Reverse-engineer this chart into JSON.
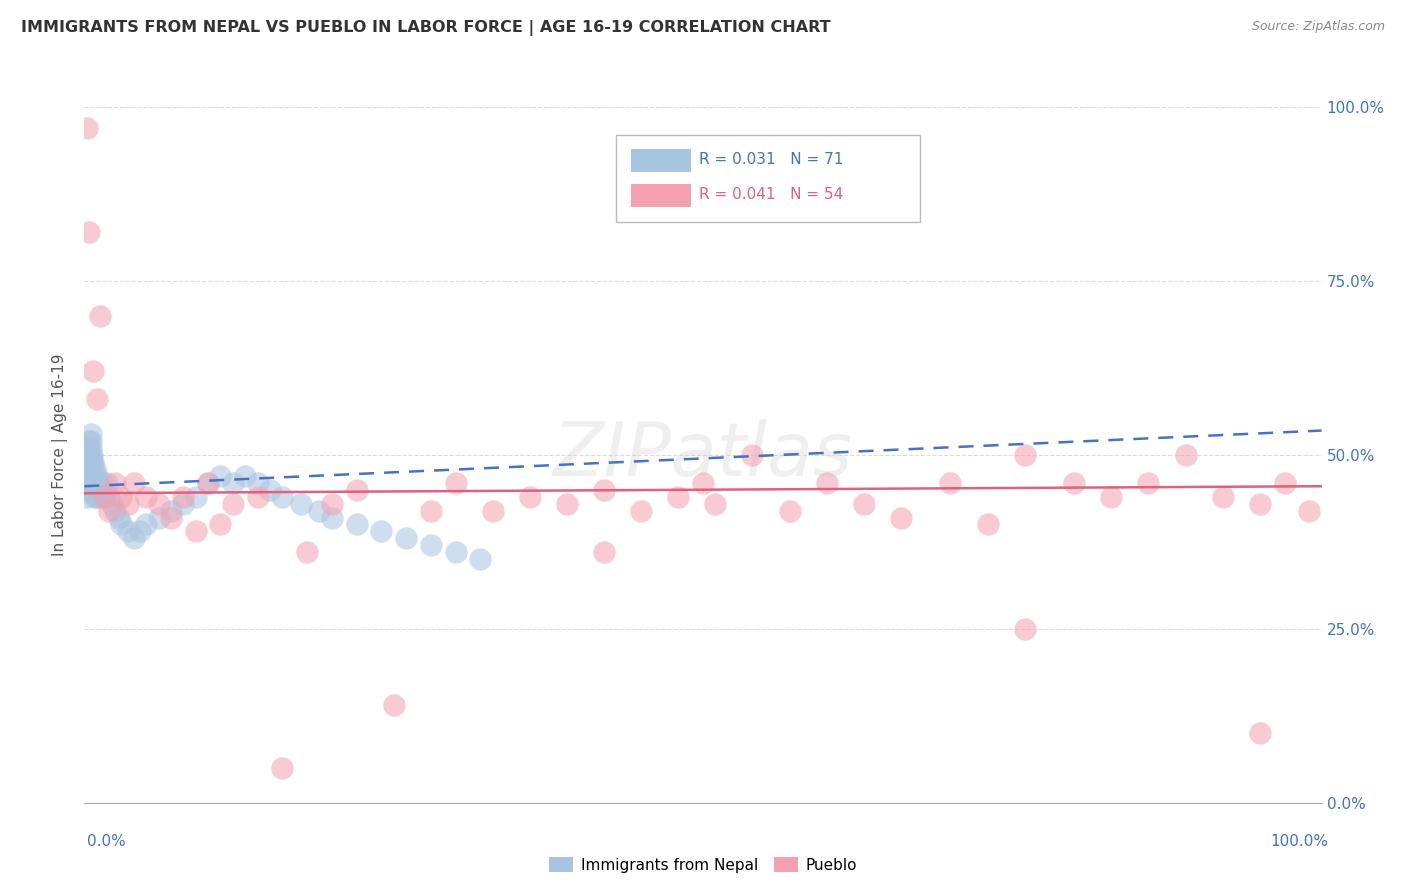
{
  "title": "IMMIGRANTS FROM NEPAL VS PUEBLO IN LABOR FORCE | AGE 16-19 CORRELATION CHART",
  "source": "Source: ZipAtlas.com",
  "ylabel": "In Labor Force | Age 16-19",
  "ylabel_right_ticks": [
    "100.0%",
    "75.0%",
    "50.0%",
    "25.0%",
    "0.0%"
  ],
  "ylabel_right_vals": [
    1.0,
    0.75,
    0.5,
    0.25,
    0.0
  ],
  "legend_blue_r": "0.031",
  "legend_blue_n": "71",
  "legend_pink_r": "0.041",
  "legend_pink_n": "54",
  "watermark": "ZIPatlas",
  "blue_color": "#a8c4e0",
  "pink_color": "#f4a0b0",
  "line_blue": "#4472c4",
  "line_pink": "#e06080",
  "blue_points_x": [
    0.002,
    0.002,
    0.002,
    0.002,
    0.003,
    0.003,
    0.003,
    0.003,
    0.003,
    0.004,
    0.004,
    0.004,
    0.004,
    0.004,
    0.005,
    0.005,
    0.005,
    0.005,
    0.005,
    0.005,
    0.006,
    0.006,
    0.006,
    0.006,
    0.007,
    0.007,
    0.007,
    0.008,
    0.008,
    0.008,
    0.009,
    0.009,
    0.01,
    0.01,
    0.01,
    0.011,
    0.012,
    0.013,
    0.014,
    0.015,
    0.016,
    0.018,
    0.02,
    0.022,
    0.025,
    0.028,
    0.03,
    0.035,
    0.04,
    0.045,
    0.05,
    0.06,
    0.07,
    0.08,
    0.09,
    0.1,
    0.11,
    0.12,
    0.13,
    0.14,
    0.15,
    0.16,
    0.175,
    0.19,
    0.2,
    0.22,
    0.24,
    0.26,
    0.28,
    0.3,
    0.32
  ],
  "blue_points_y": [
    0.46,
    0.47,
    0.45,
    0.44,
    0.5,
    0.49,
    0.48,
    0.47,
    0.46,
    0.52,
    0.51,
    0.5,
    0.49,
    0.48,
    0.53,
    0.52,
    0.51,
    0.5,
    0.49,
    0.47,
    0.5,
    0.49,
    0.47,
    0.46,
    0.49,
    0.48,
    0.46,
    0.47,
    0.46,
    0.44,
    0.48,
    0.46,
    0.47,
    0.46,
    0.44,
    0.46,
    0.45,
    0.44,
    0.46,
    0.45,
    0.44,
    0.46,
    0.44,
    0.43,
    0.42,
    0.41,
    0.4,
    0.39,
    0.38,
    0.39,
    0.4,
    0.41,
    0.42,
    0.43,
    0.44,
    0.46,
    0.47,
    0.46,
    0.47,
    0.46,
    0.45,
    0.44,
    0.43,
    0.42,
    0.41,
    0.4,
    0.39,
    0.38,
    0.37,
    0.36,
    0.35
  ],
  "pink_points_x": [
    0.002,
    0.004,
    0.007,
    0.01,
    0.013,
    0.016,
    0.02,
    0.025,
    0.03,
    0.035,
    0.04,
    0.05,
    0.06,
    0.07,
    0.08,
    0.09,
    0.1,
    0.11,
    0.12,
    0.14,
    0.16,
    0.18,
    0.2,
    0.22,
    0.25,
    0.28,
    0.3,
    0.33,
    0.36,
    0.39,
    0.42,
    0.45,
    0.48,
    0.51,
    0.54,
    0.57,
    0.6,
    0.63,
    0.66,
    0.7,
    0.73,
    0.76,
    0.8,
    0.83,
    0.86,
    0.89,
    0.92,
    0.95,
    0.97,
    0.99,
    0.42,
    0.5,
    0.76,
    0.95
  ],
  "pink_points_y": [
    0.97,
    0.82,
    0.62,
    0.58,
    0.7,
    0.44,
    0.42,
    0.46,
    0.44,
    0.43,
    0.46,
    0.44,
    0.43,
    0.41,
    0.44,
    0.39,
    0.46,
    0.4,
    0.43,
    0.44,
    0.05,
    0.36,
    0.43,
    0.45,
    0.14,
    0.42,
    0.46,
    0.42,
    0.44,
    0.43,
    0.45,
    0.42,
    0.44,
    0.43,
    0.5,
    0.42,
    0.46,
    0.43,
    0.41,
    0.46,
    0.4,
    0.5,
    0.46,
    0.44,
    0.46,
    0.5,
    0.44,
    0.43,
    0.46,
    0.42,
    0.36,
    0.46,
    0.25,
    0.1
  ],
  "blue_trend_x0": 0.0,
  "blue_trend_y0": 0.455,
  "blue_trend_x1": 1.0,
  "blue_trend_y1": 0.535,
  "pink_trend_x0": 0.0,
  "pink_trend_y0": 0.445,
  "pink_trend_x1": 1.0,
  "pink_trend_y1": 0.455,
  "xlim": [
    0.0,
    1.0
  ],
  "ylim": [
    0.0,
    1.0
  ],
  "grid_color": "#cccccc",
  "background_color": "#ffffff"
}
